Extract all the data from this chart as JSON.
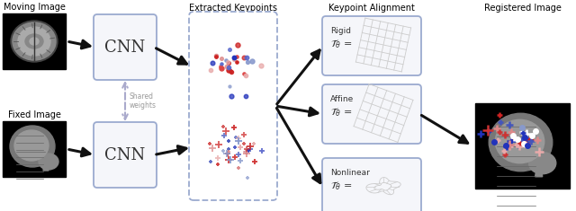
{
  "title_moving": "Moving Image",
  "title_fixed": "Fixed Image",
  "title_keypoints": "Extracted Keypoints",
  "title_alignment": "Keypoint Alignment",
  "title_registered": "Registered Image",
  "cnn_label": "CNN",
  "shared_weights_label": "Shared\nweights",
  "rigid_label": "Rigid",
  "affine_label": "Affine",
  "nonlinear_label": "Nonlinear",
  "box_color": "#9baacf",
  "box_bg": "#f5f6fa",
  "dashed_box_color": "#9baacf",
  "arrow_color": "#111111",
  "bg_color": "#ffffff",
  "red_dot": "#cc2222",
  "blue_dot": "#2233bb",
  "light_red_dot": "#dd8888",
  "light_blue_dot": "#8899cc",
  "pink_dot": "#e8aaaa",
  "fig_width": 6.4,
  "fig_height": 2.35,
  "dpi": 100
}
